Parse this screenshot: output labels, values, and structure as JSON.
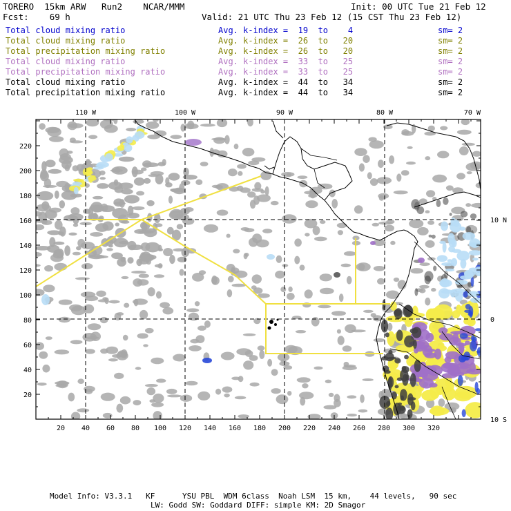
{
  "header": {
    "title_left": "TORERO  15km ARW   Run2    NCAR/MMM",
    "init": "Init: 00 UTC Tue 21 Feb 12",
    "fcst": "Fcst:    69 h",
    "valid": "Valid: 21 UTC Thu 23 Feb 12 (15 CST Thu 23 Feb 12)"
  },
  "legend": [
    {
      "field": "Total cloud mixing ratio",
      "kindex": "Avg. k-index =  19  to    4",
      "sm": "sm= 2",
      "color": "#0000cc"
    },
    {
      "field": "Total cloud mixing ratio",
      "kindex": "Avg. k-index =  26  to   20",
      "sm": "sm= 2",
      "color": "#808000"
    },
    {
      "field": "Total precipitation mixing ratio",
      "kindex": "Avg. k-index =  26  to   20",
      "sm": "sm= 2",
      "color": "#808000"
    },
    {
      "field": "Total cloud mixing ratio",
      "kindex": "Avg. k-index =  33  to   25",
      "sm": "sm= 2",
      "color": "#b070c0"
    },
    {
      "field": "Total precipitation mixing ratio",
      "kindex": "Avg. k-index =  33  to   25",
      "sm": "sm= 2",
      "color": "#b070c0"
    },
    {
      "field": "Total cloud mixing ratio",
      "kindex": "Avg. k-index =  44  to   34",
      "sm": "sm= 2",
      "color": "#000000"
    },
    {
      "field": "Total precipitation mixing ratio",
      "kindex": "Avg. k-index =  44  to   34",
      "sm": "sm= 2",
      "color": "#000000"
    }
  ],
  "map": {
    "lon_labels": [
      "110 W",
      "100 W",
      "90 W",
      "80 W",
      "70 W"
    ],
    "lat_labels": [
      "10 N",
      "0",
      "10 S"
    ],
    "grid_x_labels": [
      "20",
      "40",
      "60",
      "80",
      "100",
      "120",
      "140",
      "160",
      "180",
      "200",
      "220",
      "240",
      "260",
      "280",
      "300",
      "320"
    ],
    "grid_y_labels": [
      "220",
      "200",
      "180",
      "160",
      "140",
      "120",
      "100",
      "80",
      "60",
      "40",
      "20"
    ],
    "colors": {
      "cloud_gray": "#a8a8a8",
      "dark": "#404040",
      "yellow": "#f4ec4a",
      "purple": "#a070c8",
      "light_blue": "#b8ddf6",
      "blue": "#2848d8",
      "track": "#f0e040"
    }
  },
  "footer": {
    "line1": "Model Info: V3.3.1   KF      YSU PBL  WDM 6class  Noah LSM  15 km,    44 levels,   90 sec",
    "line2": "LW: Godd SW: Goddard DIFF: simple KM: 2D Smagor"
  }
}
